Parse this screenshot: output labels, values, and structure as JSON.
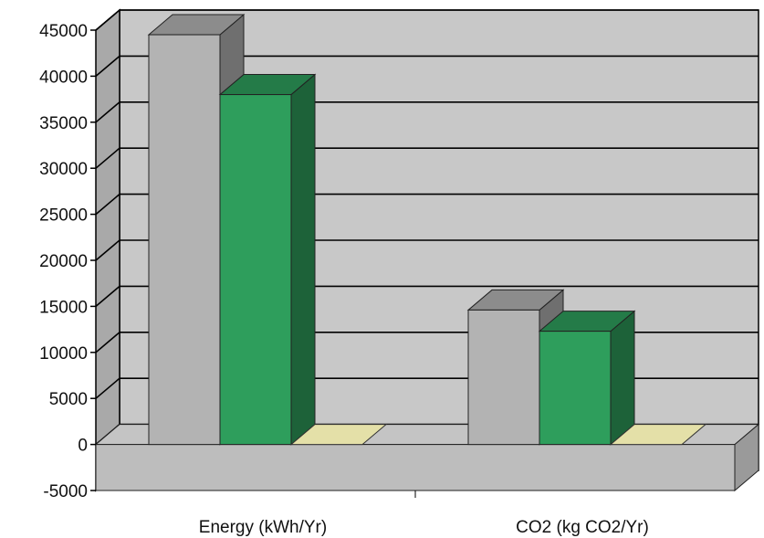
{
  "chart_data": {
    "type": "bar",
    "categories": [
      "Energy (kWh/Yr)",
      "CO2 (kg CO2/Yr)"
    ],
    "series": [
      {
        "values": [
          44500,
          14600
        ],
        "color": "#b3b3b3"
      },
      {
        "values": [
          38000,
          12300
        ],
        "color": "#2e9e5c"
      },
      {
        "values": [
          0,
          0
        ],
        "color": "#e4e0a8"
      }
    ],
    "ylim": [
      -5000,
      45000
    ],
    "yticks": [
      -5000,
      0,
      5000,
      10000,
      15000,
      20000,
      25000,
      30000,
      35000,
      40000,
      45000
    ],
    "grid": true,
    "three_d": true,
    "colors": {
      "back_wall": "#c8c8c8",
      "side_wall": "#a9a9a9",
      "floor": "#c4c4c4",
      "gridline": "#000000"
    }
  }
}
